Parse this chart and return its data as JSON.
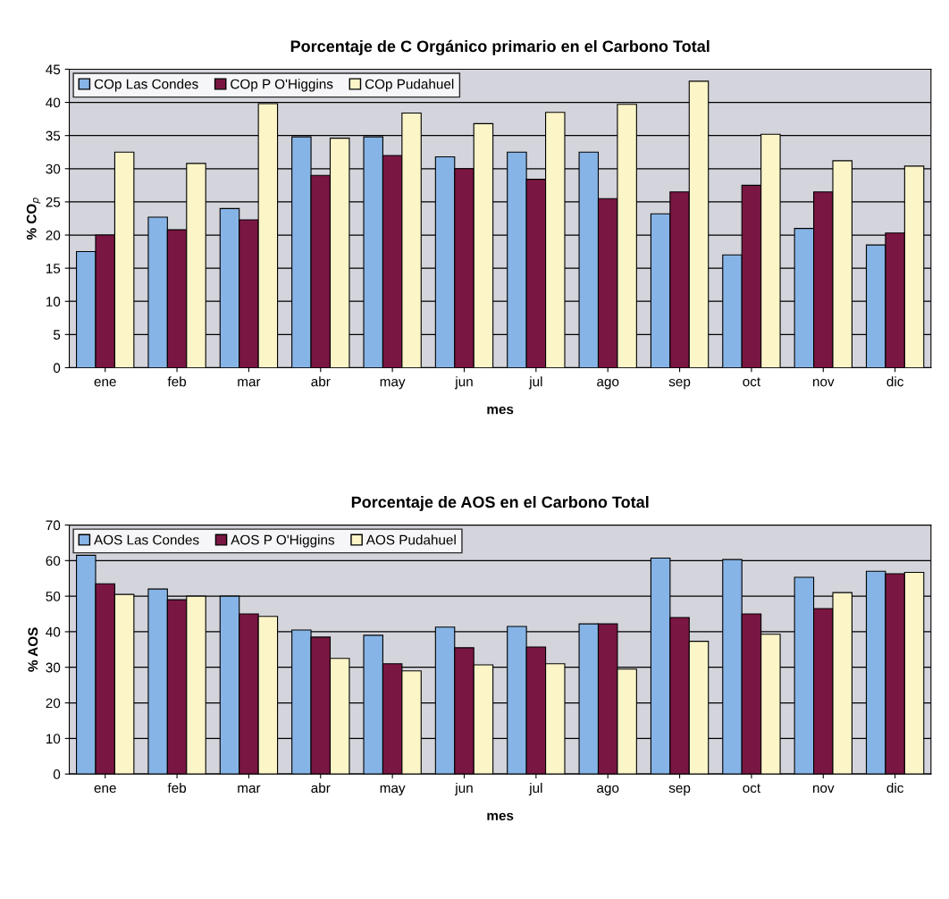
{
  "chart_data": [
    {
      "type": "bar",
      "title": "Porcentaje de C Orgánico primario en el Carbono Total",
      "xlabel": "mes",
      "ylabel": "% CO$_{p}$",
      "categories": [
        "ene",
        "feb",
        "mar",
        "abr",
        "may",
        "jun",
        "jul",
        "ago",
        "sep",
        "oct",
        "nov",
        "dic"
      ],
      "series": [
        {
          "name": "COp Las Condes",
          "color": "#86b4e6",
          "values": [
            17.5,
            22.7,
            24,
            34.8,
            34.8,
            31.8,
            32.5,
            32.5,
            23.2,
            17,
            21,
            18.5
          ]
        },
        {
          "name": "COp P O'Higgins",
          "color": "#7a1642",
          "values": [
            20,
            20.8,
            22.3,
            29,
            32,
            30,
            28.4,
            25.5,
            26.5,
            27.5,
            26.5,
            20.3
          ]
        },
        {
          "name": "COp Pudahuel",
          "color": "#fbf5c8",
          "values": [
            32.5,
            30.8,
            39.8,
            34.6,
            38.4,
            36.8,
            38.5,
            39.7,
            43.2,
            35.2,
            31.2,
            30.4
          ]
        }
      ],
      "ylim": [
        0,
        45
      ],
      "yticks": [
        0,
        5,
        10,
        15,
        20,
        25,
        30,
        35,
        40,
        45
      ],
      "grid": "y",
      "legend": "top left"
    },
    {
      "type": "bar",
      "title": "Porcentaje de AOS en el Carbono Total",
      "xlabel": "mes",
      "ylabel": "% AOS",
      "categories": [
        "ene",
        "feb",
        "mar",
        "abr",
        "may",
        "jun",
        "jul",
        "ago",
        "sep",
        "oct",
        "nov",
        "dic"
      ],
      "series": [
        {
          "name": "AOS Las Condes",
          "color": "#86b4e6",
          "values": [
            61.5,
            52,
            50,
            40.5,
            39,
            41.3,
            41.5,
            42.2,
            60.7,
            60.3,
            55.3,
            57
          ]
        },
        {
          "name": "AOS P O'Higgins",
          "color": "#7a1642",
          "values": [
            53.5,
            49,
            45,
            38.5,
            31,
            35.5,
            35.7,
            42.2,
            44,
            45,
            46.5,
            56.3
          ]
        },
        {
          "name": "AOS Pudahuel",
          "color": "#fbf5c8",
          "values": [
            50.5,
            50,
            44.3,
            32.5,
            29,
            30.7,
            31,
            29.5,
            37.3,
            39.3,
            51,
            56.7
          ]
        }
      ],
      "ylim": [
        0,
        70
      ],
      "yticks": [
        0,
        10,
        20,
        30,
        40,
        50,
        60,
        70
      ],
      "grid": "y",
      "legend": "top left"
    }
  ]
}
